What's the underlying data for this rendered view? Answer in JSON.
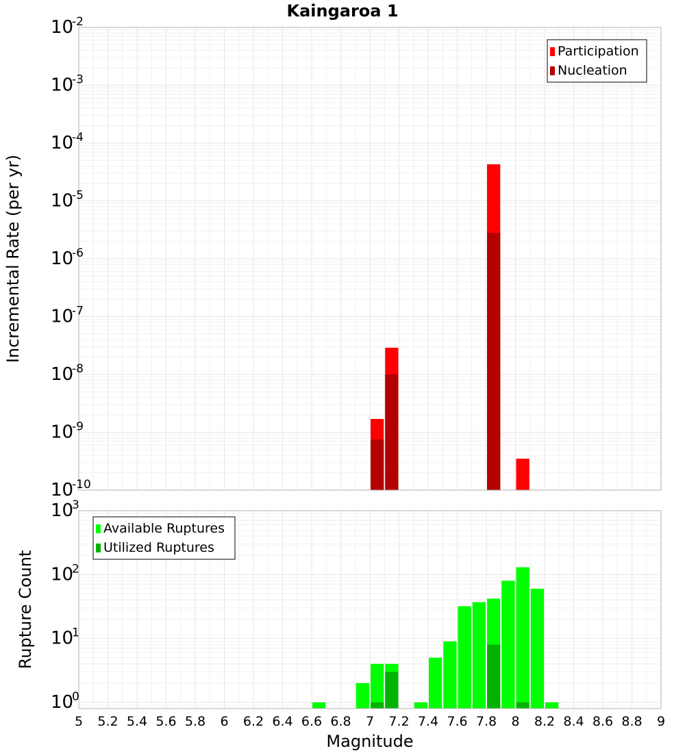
{
  "chart_data": [
    {
      "type": "bar",
      "title": "Kaingaroa 1",
      "ylabel": "Incremental Rate (per yr)",
      "xlim": [
        5,
        9
      ],
      "ylim": [
        1e-10,
        0.01
      ],
      "yscale": "log",
      "y_tick_exponents": [
        "-10",
        "-9",
        "-8",
        "-7",
        "-6",
        "-5",
        "-4",
        "-3",
        "-2"
      ],
      "legend_position": "top-right",
      "series": [
        {
          "name": "Participation",
          "color": "#ff0000",
          "x": [
            7.05,
            7.15,
            7.85,
            8.05
          ],
          "values": [
            1.7e-09,
            2.9e-08,
            4.3e-05,
            3.5e-10
          ]
        },
        {
          "name": "Nucleation",
          "color": "#b30000",
          "x": [
            7.05,
            7.15,
            7.85
          ],
          "values": [
            7.5e-10,
            1e-08,
            2.8e-06
          ]
        }
      ]
    },
    {
      "type": "bar",
      "xlabel": "Magnitude",
      "ylabel": "Rupture Count",
      "xlim": [
        5,
        9
      ],
      "ylim": [
        0.8,
        1000
      ],
      "yscale": "log",
      "y_tick_exponents": [
        "0",
        "1",
        "2",
        "3"
      ],
      "legend_position": "top-left",
      "x_tick_labels": [
        "5",
        "5.2",
        "5.4",
        "5.6",
        "5.8",
        "6",
        "6.2",
        "6.4",
        "6.6",
        "6.8",
        "7",
        "7.2",
        "7.4",
        "7.6",
        "7.8",
        "8",
        "8.2",
        "8.4",
        "8.6",
        "8.8",
        "9"
      ],
      "series": [
        {
          "name": "Available Ruptures",
          "color": "#00ff00",
          "x": [
            6.65,
            6.95,
            7.05,
            7.15,
            7.35,
            7.45,
            7.55,
            7.65,
            7.75,
            7.85,
            7.95,
            8.05,
            8.15,
            8.25
          ],
          "values": [
            1,
            2,
            4,
            4,
            1,
            5,
            9,
            32,
            37,
            42,
            80,
            130,
            60,
            1
          ]
        },
        {
          "name": "Utilized Ruptures",
          "color": "#00b300",
          "x": [
            7.05,
            7.15,
            7.85,
            8.05
          ],
          "values": [
            1,
            3,
            8,
            1
          ]
        }
      ]
    }
  ]
}
